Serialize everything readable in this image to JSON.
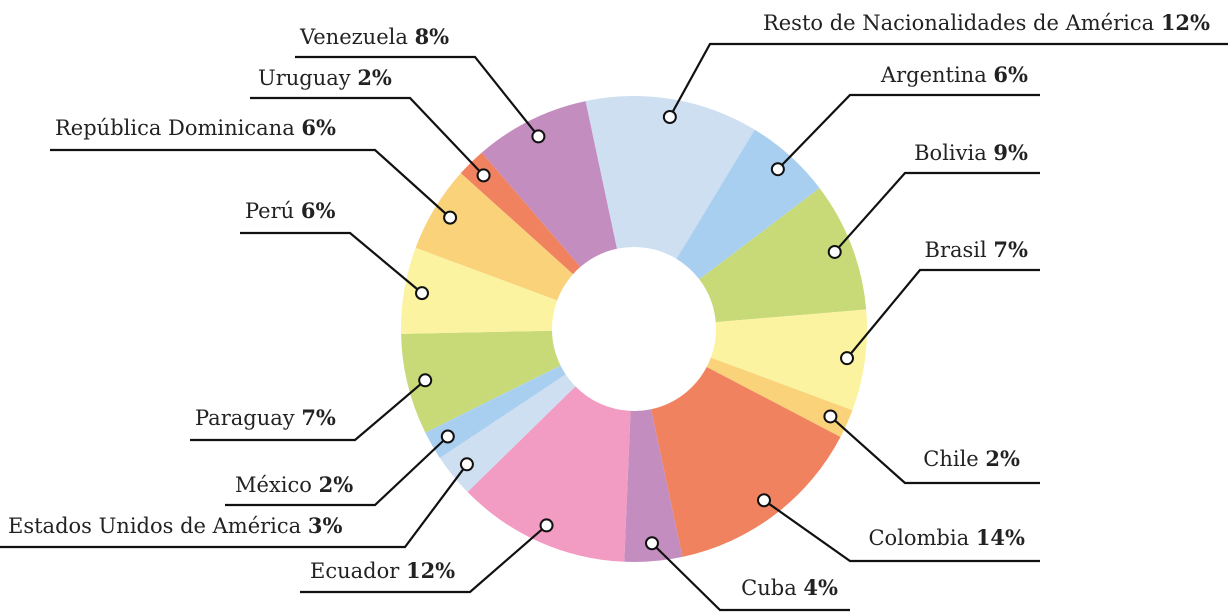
{
  "chart_data": {
    "type": "donut",
    "categories": [
      "Resto de Nacionalidades de América",
      "Argentina",
      "Bolivia",
      "Brasil",
      "Chile",
      "Colombia",
      "Cuba",
      "Ecuador",
      "Estados Unidos de América",
      "México",
      "Paraguay",
      "Perú",
      "República Dominicana",
      "Uruguay",
      "Venezuela"
    ],
    "values": [
      12,
      6,
      9,
      7,
      2,
      14,
      4,
      12,
      3,
      2,
      7,
      6,
      6,
      2,
      8
    ],
    "value_labels": [
      "12%",
      "6%",
      "9%",
      "7%",
      "2%",
      "14%",
      "4%",
      "12%",
      "3%",
      "2%",
      "7%",
      "6%",
      "6%",
      "2%",
      "8%"
    ],
    "colors": [
      "#cfdff2",
      "#a9cff0",
      "#c8da78",
      "#fbf3a0",
      "#f9d27a",
      "#f0825f",
      "#c48dbf",
      "#f29cc3",
      "#cfdff2",
      "#a9cff0",
      "#c8da78",
      "#fbf3a0",
      "#f9d27a",
      "#f0825f",
      "#c48dbf"
    ]
  }
}
